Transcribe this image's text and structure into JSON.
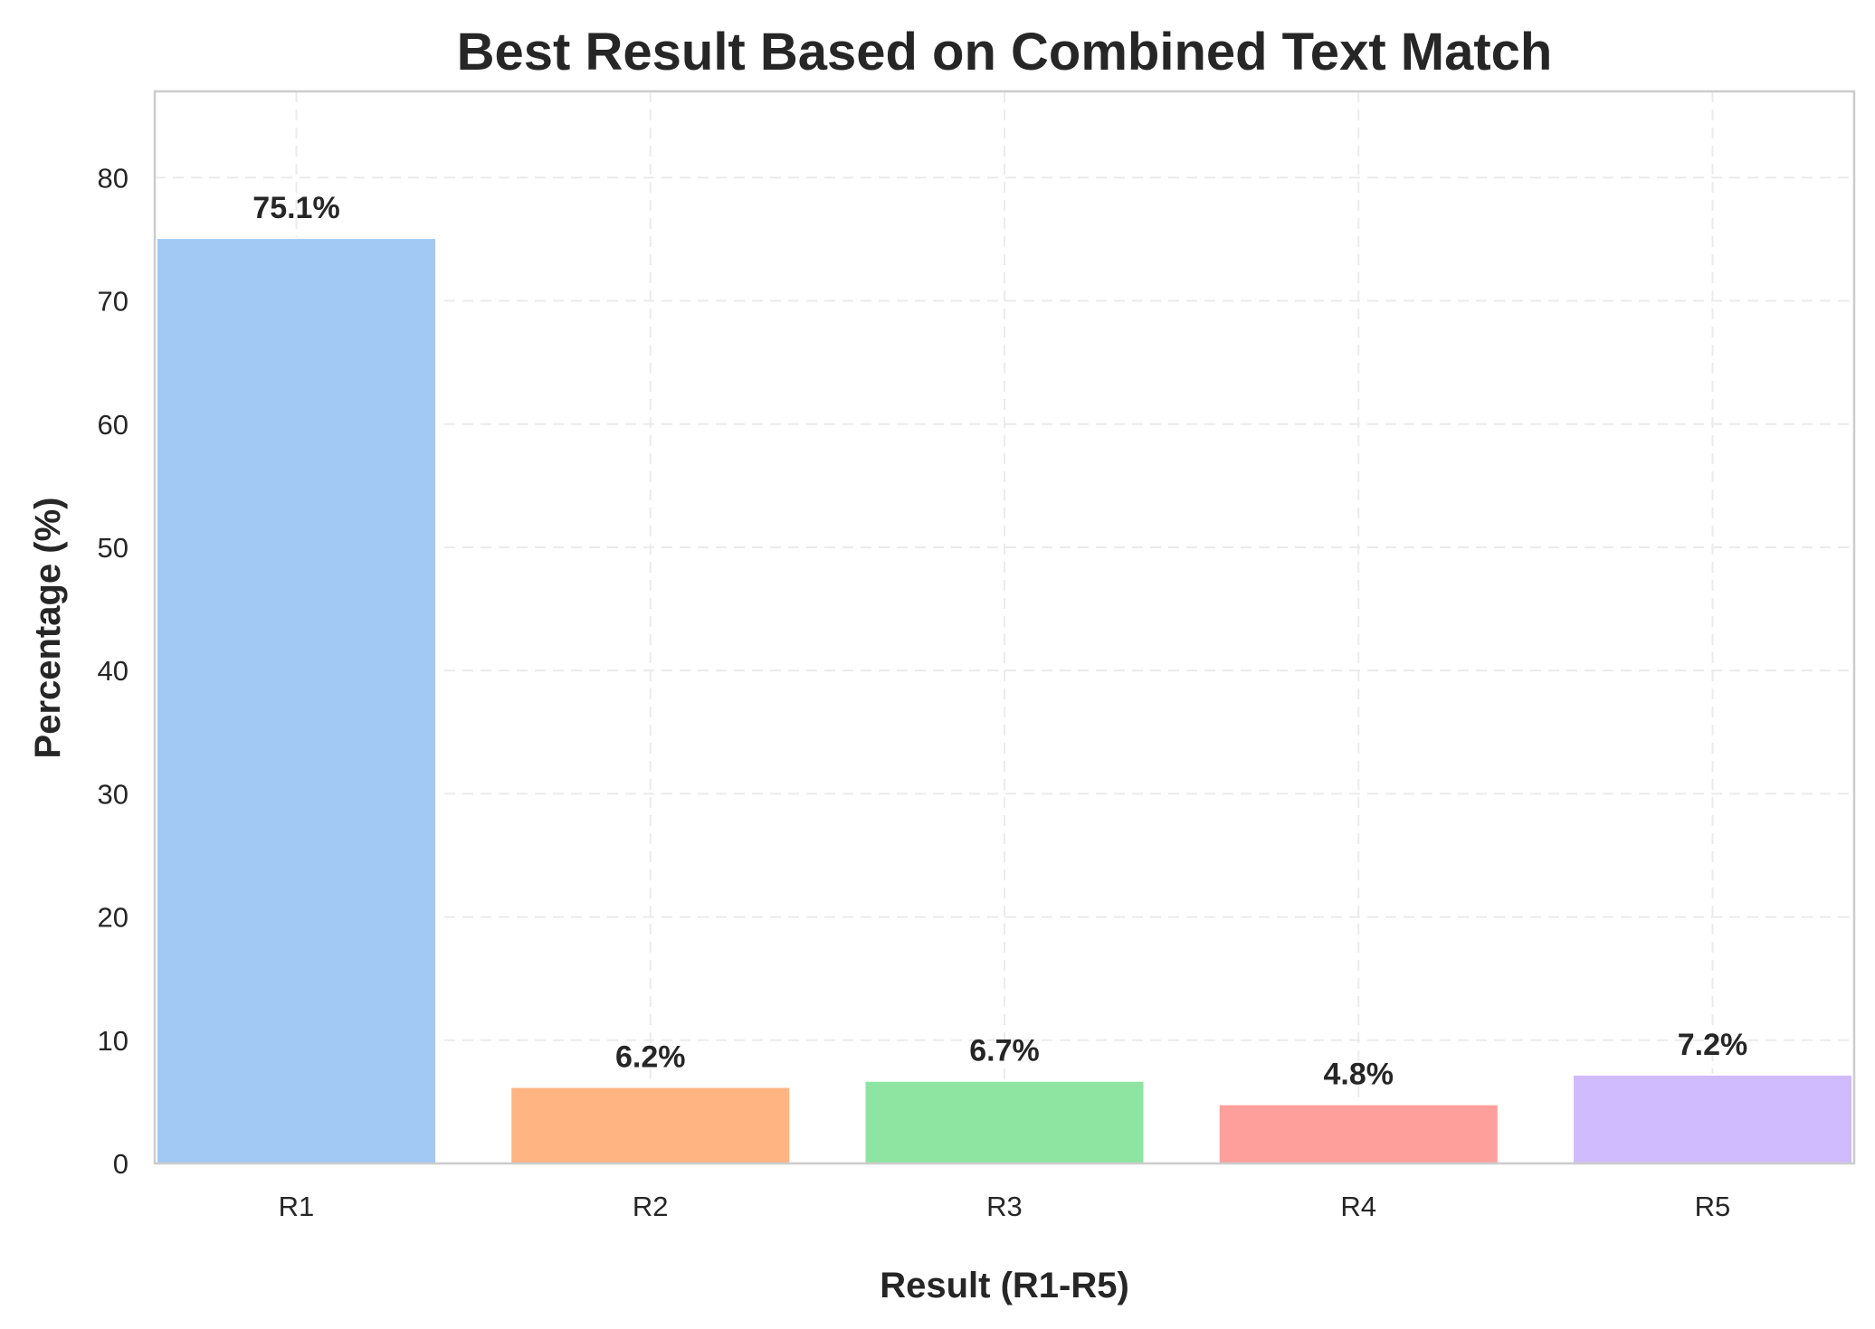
{
  "chart_data": {
    "type": "bar",
    "title": "Best Result Based on Combined Text Match",
    "xlabel": "Result (R1-R5)",
    "ylabel": "Percentage (%)",
    "categories": [
      "R1",
      "R2",
      "R3",
      "R4",
      "R5"
    ],
    "values": [
      75.1,
      6.2,
      6.7,
      4.8,
      7.2
    ],
    "data_labels": [
      "75.1%",
      "6.2%",
      "6.7%",
      "4.8%",
      "7.2%"
    ],
    "colors": [
      "#a1c9f4",
      "#ffb482",
      "#8de5a1",
      "#ff9f9b",
      "#d0bbff"
    ],
    "ylim": [
      0,
      87
    ],
    "yticks": [
      0,
      10,
      20,
      30,
      40,
      50,
      60,
      70,
      80
    ],
    "grid": true,
    "legend": false
  }
}
